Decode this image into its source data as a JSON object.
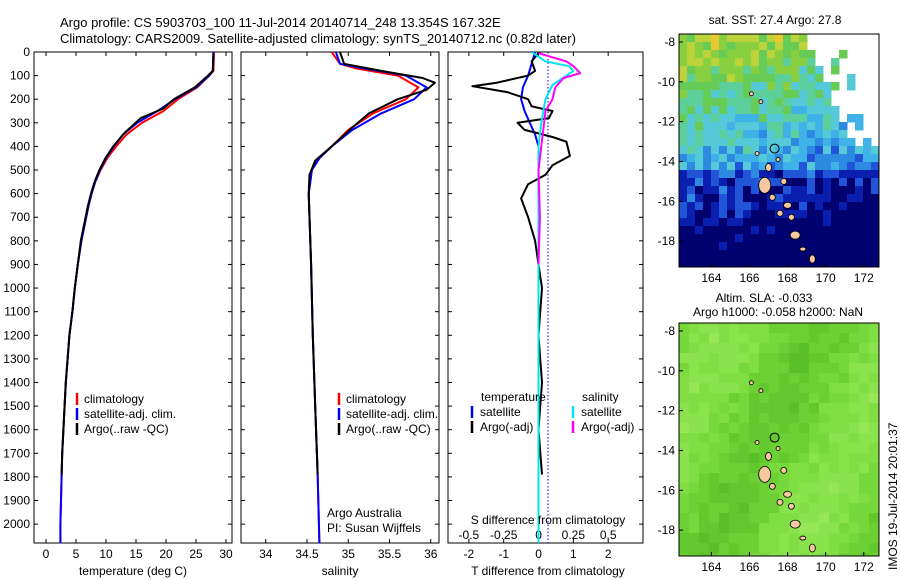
{
  "header": {
    "title_line1": "Argo profile: CS 5903703_100 11-Jul-2014 20140714_248 13.354S 167.32E",
    "title_line2": "Climatology: CARS2009. Satellite-adjusted climatology: synTS_20140712.nc (0.82d later)"
  },
  "credits": {
    "line1": "Argo Australia",
    "line2": "PI: Susan Wijffels"
  },
  "stamp": "IMOS 19-Jul-2014 20:01:37",
  "colors": {
    "climatology": "#ff0000",
    "satellite": "#0000ff",
    "argo": "#000000",
    "satellite_salinity": "#00e5ee",
    "argo_salinity": "#ff00ff"
  },
  "chart_data": [
    {
      "type": "line",
      "xlabel": "temperature (deg C)",
      "ylabel": "",
      "xlim": [
        -2,
        31
      ],
      "ylim": [
        2080,
        0
      ],
      "xticks": [
        0,
        5,
        10,
        15,
        20,
        25,
        30
      ],
      "yticks": [
        0,
        100,
        200,
        300,
        400,
        500,
        600,
        700,
        800,
        900,
        1000,
        1100,
        1200,
        1300,
        1400,
        1500,
        1600,
        1700,
        1800,
        1900,
        2000
      ],
      "legend": [
        "climatology",
        "satellite-adj. clim.",
        "Argo(..raw -QC)"
      ],
      "legend_position": "lower-center",
      "series": [
        {
          "name": "climatology",
          "color": "#ff0000",
          "points": [
            [
              28.0,
              0
            ],
            [
              27.9,
              80
            ],
            [
              27.2,
              100
            ],
            [
              25.2,
              150
            ],
            [
              22.0,
              200
            ],
            [
              19.6,
              250
            ],
            [
              16.0,
              300
            ],
            [
              13.4,
              350
            ],
            [
              11.7,
              400
            ],
            [
              10.2,
              450
            ],
            [
              9.1,
              500
            ],
            [
              8.2,
              550
            ],
            [
              7.6,
              600
            ],
            [
              7.1,
              650
            ],
            [
              6.7,
              700
            ],
            [
              5.9,
              800
            ],
            [
              5.3,
              900
            ],
            [
              4.8,
              1000
            ],
            [
              4.4,
              1100
            ],
            [
              3.9,
              1200
            ],
            [
              3.6,
              1300
            ],
            [
              3.3,
              1400
            ],
            [
              3.1,
              1500
            ],
            [
              2.9,
              1600
            ],
            [
              2.7,
              1700
            ],
            [
              2.6,
              1800
            ],
            [
              2.5,
              1900
            ],
            [
              2.4,
              2000
            ],
            [
              2.4,
              2080
            ]
          ]
        },
        {
          "name": "satellite-adj. clim.",
          "color": "#0000ff",
          "points": [
            [
              27.9,
              0
            ],
            [
              27.8,
              80
            ],
            [
              27.2,
              100
            ],
            [
              25.0,
              150
            ],
            [
              21.5,
              200
            ],
            [
              18.6,
              250
            ],
            [
              15.2,
              300
            ],
            [
              12.8,
              350
            ],
            [
              11.3,
              400
            ],
            [
              10.0,
              450
            ],
            [
              9.0,
              500
            ],
            [
              8.2,
              550
            ],
            [
              7.6,
              600
            ],
            [
              7.1,
              650
            ],
            [
              6.7,
              700
            ],
            [
              5.9,
              800
            ],
            [
              5.3,
              900
            ],
            [
              4.8,
              1000
            ],
            [
              4.4,
              1100
            ],
            [
              3.9,
              1200
            ],
            [
              3.6,
              1300
            ],
            [
              3.3,
              1400
            ],
            [
              3.1,
              1500
            ],
            [
              2.9,
              1600
            ],
            [
              2.7,
              1700
            ],
            [
              2.6,
              1800
            ],
            [
              2.5,
              1900
            ],
            [
              2.4,
              2000
            ],
            [
              2.4,
              2080
            ]
          ]
        },
        {
          "name": "Argo(..raw -QC)",
          "color": "#000000",
          "points": [
            [
              27.9,
              5
            ],
            [
              27.8,
              80
            ],
            [
              27.0,
              100
            ],
            [
              24.8,
              150
            ],
            [
              21.3,
              200
            ],
            [
              19.5,
              240
            ],
            [
              15.8,
              280
            ],
            [
              13.2,
              340
            ],
            [
              11.2,
              400
            ],
            [
              9.9,
              450
            ],
            [
              8.9,
              500
            ],
            [
              8.1,
              550
            ],
            [
              7.5,
              600
            ],
            [
              7.0,
              650
            ],
            [
              6.6,
              700
            ],
            [
              5.8,
              800
            ],
            [
              5.3,
              900
            ],
            [
              4.8,
              1000
            ],
            [
              4.4,
              1100
            ],
            [
              3.9,
              1200
            ],
            [
              3.6,
              1300
            ],
            [
              3.3,
              1400
            ],
            [
              3.1,
              1500
            ],
            [
              2.9,
              1600
            ],
            [
              2.7,
              1700
            ],
            [
              2.6,
              1790
            ]
          ]
        }
      ]
    },
    {
      "type": "line",
      "xlabel": "salinity",
      "ylabel": "",
      "xlim": [
        33.7,
        36.1
      ],
      "ylim": [
        2080,
        0
      ],
      "xticks": [
        34,
        34.5,
        35,
        35.5,
        36
      ],
      "legend": [
        "climatology",
        "satellite-adj. clim.",
        "Argo(..raw -QC)"
      ],
      "legend_position": "lower-right",
      "series": [
        {
          "name": "climatology",
          "color": "#ff0000",
          "points": [
            [
              34.8,
              0
            ],
            [
              34.9,
              50
            ],
            [
              35.1,
              70
            ],
            [
              35.6,
              100
            ],
            [
              35.85,
              150
            ],
            [
              35.7,
              200
            ],
            [
              35.3,
              260
            ],
            [
              35.0,
              330
            ],
            [
              34.8,
              400
            ],
            [
              34.65,
              450
            ],
            [
              34.56,
              500
            ],
            [
              34.52,
              600
            ],
            [
              34.53,
              700
            ],
            [
              34.55,
              900
            ],
            [
              34.57,
              1200
            ],
            [
              34.6,
              1500
            ],
            [
              34.63,
              1800
            ],
            [
              34.65,
              2080
            ]
          ]
        },
        {
          "name": "satellite-adj. clim.",
          "color": "#0000ff",
          "points": [
            [
              34.85,
              0
            ],
            [
              34.9,
              50
            ],
            [
              35.2,
              70
            ],
            [
              35.7,
              100
            ],
            [
              35.95,
              150
            ],
            [
              35.8,
              200
            ],
            [
              35.4,
              260
            ],
            [
              35.05,
              330
            ],
            [
              34.8,
              400
            ],
            [
              34.65,
              450
            ],
            [
              34.56,
              500
            ],
            [
              34.52,
              600
            ],
            [
              34.53,
              700
            ],
            [
              34.55,
              900
            ],
            [
              34.57,
              1200
            ],
            [
              34.6,
              1500
            ],
            [
              34.63,
              1800
            ],
            [
              34.65,
              2080
            ]
          ]
        },
        {
          "name": "Argo(..raw -QC)",
          "color": "#000000",
          "points": [
            [
              34.9,
              0
            ],
            [
              34.95,
              50
            ],
            [
              35.4,
              80
            ],
            [
              35.9,
              110
            ],
            [
              36.05,
              130
            ],
            [
              35.95,
              160
            ],
            [
              35.6,
              200
            ],
            [
              35.25,
              260
            ],
            [
              35.05,
              320
            ],
            [
              34.8,
              400
            ],
            [
              34.6,
              460
            ],
            [
              34.53,
              520
            ],
            [
              34.52,
              600
            ],
            [
              34.53,
              700
            ],
            [
              34.55,
              900
            ],
            [
              34.57,
              1200
            ],
            [
              34.6,
              1500
            ],
            [
              34.63,
              1790
            ]
          ]
        }
      ]
    },
    {
      "type": "line",
      "xlabel": "T difference from climatology",
      "x2label": "S difference from climatology",
      "xlim": [
        -2.6,
        3.0
      ],
      "x2lim": [
        -0.65,
        0.75
      ],
      "ylim": [
        2080,
        0
      ],
      "xticks": [
        -2,
        -1,
        0,
        1,
        2
      ],
      "x2ticks": [
        -0.5,
        -0.25,
        0,
        0.25,
        0.5
      ],
      "legend": [
        "temperature",
        "satellite",
        "Argo(-adj)",
        "salinity",
        "satellite",
        "Argo(-adj)"
      ],
      "legend_position": "lower-center",
      "series": [
        {
          "name": "satellite",
          "axis": "T",
          "color": "#0000ff",
          "points": [
            [
              -0.1,
              0
            ],
            [
              -0.2,
              50
            ],
            [
              -0.3,
              100
            ],
            [
              -0.45,
              150
            ],
            [
              -0.5,
              200
            ],
            [
              -0.4,
              250
            ],
            [
              -0.25,
              300
            ],
            [
              -0.1,
              350
            ],
            [
              0.0,
              400
            ],
            [
              0.0,
              500
            ],
            [
              0.0,
              700
            ],
            [
              0.0,
              1000
            ],
            [
              0.0,
              1100
            ]
          ]
        },
        {
          "name": "Argo(-adj)",
          "axis": "T",
          "color": "#000000",
          "points": [
            [
              0.0,
              5
            ],
            [
              -0.2,
              40
            ],
            [
              -0.1,
              80
            ],
            [
              -0.3,
              100
            ],
            [
              -1.2,
              130
            ],
            [
              -1.9,
              145
            ],
            [
              -0.9,
              170
            ],
            [
              -0.3,
              200
            ],
            [
              -0.2,
              230
            ],
            [
              0.4,
              250
            ],
            [
              0.3,
              280
            ],
            [
              -0.6,
              300
            ],
            [
              -0.4,
              330
            ],
            [
              0.4,
              360
            ],
            [
              0.8,
              380
            ],
            [
              0.9,
              440
            ],
            [
              0.4,
              480
            ],
            [
              0.2,
              520
            ],
            [
              -0.3,
              560
            ],
            [
              -0.5,
              620
            ],
            [
              -0.3,
              700
            ],
            [
              -0.1,
              800
            ],
            [
              0.0,
              900
            ],
            [
              0.1,
              1000
            ],
            [
              0.0,
              1200
            ],
            [
              0.1,
              1400
            ],
            [
              0.0,
              1600
            ],
            [
              0.1,
              1790
            ]
          ]
        },
        {
          "name": "satellite",
          "axis": "S",
          "color": "#00e5ee",
          "points": [
            [
              -0.05,
              0
            ],
            [
              0.05,
              40
            ],
            [
              0.22,
              60
            ],
            [
              0.25,
              80
            ],
            [
              0.2,
              100
            ],
            [
              0.1,
              140
            ],
            [
              0.05,
              200
            ],
            [
              0.02,
              300
            ],
            [
              0.0,
              400
            ],
            [
              0.0,
              600
            ],
            [
              0.0,
              1000
            ],
            [
              0.0,
              1500
            ],
            [
              0.0,
              2080
            ]
          ]
        },
        {
          "name": "Argo(-adj)",
          "axis": "S",
          "color": "#ff00ff",
          "points": [
            [
              0.0,
              5
            ],
            [
              0.2,
              40
            ],
            [
              0.25,
              60
            ],
            [
              0.3,
              90
            ],
            [
              0.18,
              110
            ],
            [
              0.12,
              150
            ],
            [
              0.1,
              200
            ],
            [
              0.05,
              250
            ],
            [
              0.04,
              300
            ],
            [
              0.02,
              400
            ],
            [
              0.0,
              500
            ],
            [
              0.01,
              700
            ],
            [
              0.0,
              900
            ]
          ]
        }
      ]
    },
    {
      "type": "heatmap",
      "title": "sat. SST: 27.4 Argo: 27.8",
      "xlim": [
        162.3,
        172.8
      ],
      "ylim": [
        -19.3,
        -7.6
      ],
      "xticks": [
        164,
        166,
        168,
        170,
        172
      ],
      "yticks": [
        -8,
        -10,
        -12,
        -14,
        -16,
        -18
      ],
      "argo_position": {
        "lon": 167.32,
        "lat": -13.354
      }
    },
    {
      "type": "heatmap",
      "title": "Altim. SLA: -0.033",
      "subtitle": "Argo h1000: -0.058 h2000: NaN",
      "xlim": [
        162.3,
        172.8
      ],
      "ylim": [
        -19.3,
        -7.6
      ],
      "xticks": [
        164,
        166,
        168,
        170,
        172
      ],
      "yticks": [
        -8,
        -10,
        -12,
        -14,
        -16,
        -18
      ],
      "argo_position": {
        "lon": 167.32,
        "lat": -13.354
      }
    }
  ]
}
